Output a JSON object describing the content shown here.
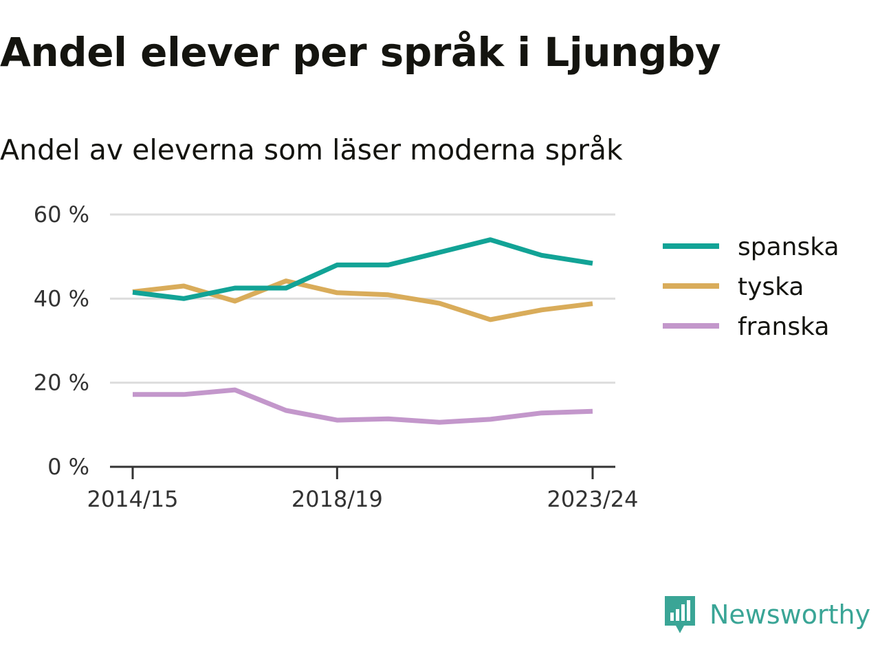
{
  "header": {
    "title": "Andel elever per språk i Ljungby",
    "subtitle": "Andel av eleverna som läser moderna språk"
  },
  "brand": {
    "name": "Newsworthy",
    "logo_icon": "newsworthy-bar-chart-icon",
    "color": "#3aa596"
  },
  "chart_data": {
    "type": "line",
    "title": "Andel elever per språk i Ljungby",
    "subtitle": "Andel av eleverna som läser moderna språk",
    "xlabel": "",
    "ylabel": "",
    "x": [
      "2014/15",
      "2015/16",
      "2016/17",
      "2017/18",
      "2018/19",
      "2019/20",
      "2020/21",
      "2021/22",
      "2022/23",
      "2023/24"
    ],
    "x_tick_labels": [
      "2014/15",
      "2018/19",
      "2023/24"
    ],
    "ylim": [
      0,
      60
    ],
    "y_ticks": [
      0,
      20,
      40,
      60
    ],
    "y_tick_labels": [
      "0 %",
      "20 %",
      "40 %",
      "60 %"
    ],
    "grid": true,
    "legend_position": "right",
    "series": [
      {
        "name": "spanska",
        "color": "#12a396",
        "values": [
          41.5,
          40.0,
          42.5,
          42.5,
          48.0,
          48.0,
          51.0,
          54.0,
          50.3,
          48.4
        ]
      },
      {
        "name": "tyska",
        "color": "#d9ac5a",
        "values": [
          41.6,
          43.0,
          39.4,
          44.2,
          41.4,
          40.9,
          38.9,
          35.0,
          37.3,
          38.8
        ]
      },
      {
        "name": "franska",
        "color": "#c397cb",
        "values": [
          17.2,
          17.2,
          18.3,
          13.4,
          11.1,
          11.4,
          10.6,
          11.3,
          12.8,
          13.2
        ]
      }
    ]
  }
}
